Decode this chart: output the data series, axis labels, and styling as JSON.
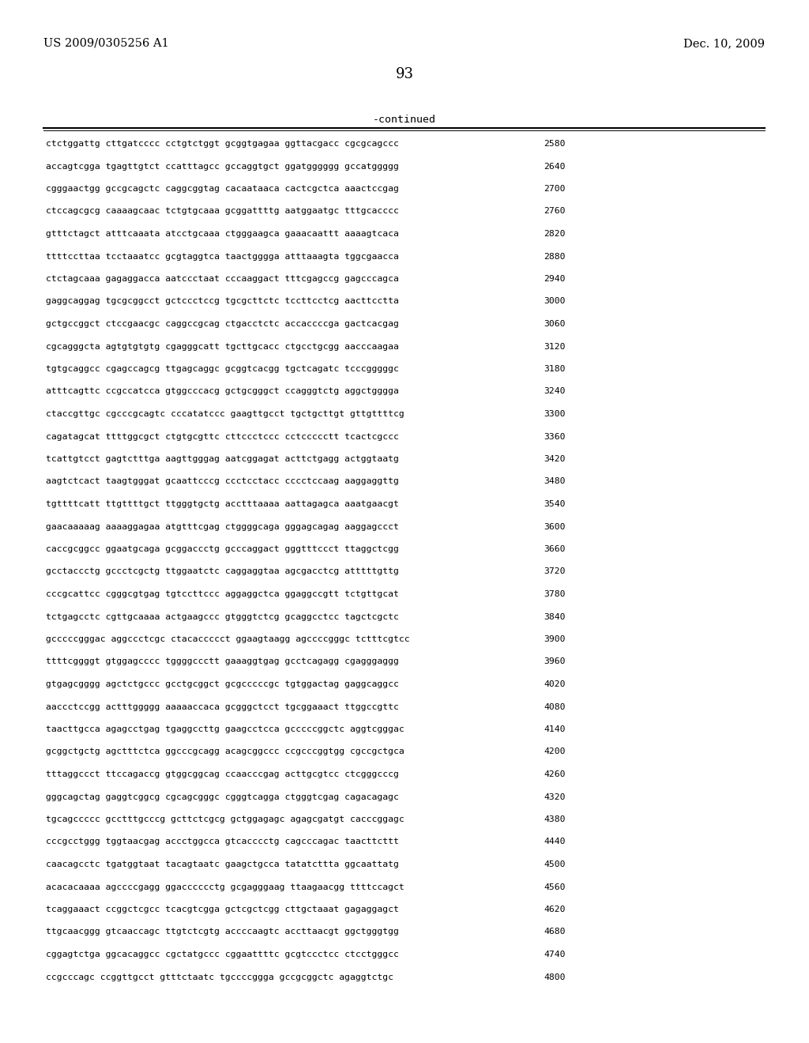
{
  "header_left": "US 2009/0305256 A1",
  "header_right": "Dec. 10, 2009",
  "page_number": "93",
  "continued_label": "-continued",
  "background_color": "#ffffff",
  "text_color": "#000000",
  "sequence_lines": [
    [
      "ctctggattg cttgatcccc cctgtctggt gcggtgagaa ggttacgacc cgcgcagccc",
      "2580"
    ],
    [
      "accagtcgga tgagttgtct ccatttagcc gccaggtgct ggatgggggg gccatggggg",
      "2640"
    ],
    [
      "cgggaactgg gccgcagctc caggcggtag cacaataaca cactcgctca aaactccgag",
      "2700"
    ],
    [
      "ctccagcgcg caaaagcaac tctgtgcaaa gcggattttg aatggaatgc tttgcacccc",
      "2760"
    ],
    [
      "gtttctagct atttcaaata atcctgcaaa ctgggaagca gaaacaattt aaaagtcaca",
      "2820"
    ],
    [
      "ttttccttaa tcctaaatcc gcgtaggtca taactgggga atttaaagta tggcgaacca",
      "2880"
    ],
    [
      "ctctagcaaa gagaggacca aatccctaat cccaaggact tttcgagccg gagcccagca",
      "2940"
    ],
    [
      "gaggcaggag tgcgcggcct gctccctccg tgcgcttctc tccttcctcg aacttcctta",
      "3000"
    ],
    [
      "gctgccggct ctccgaacgc caggccgcag ctgacctctc accaccccga gactcacgag",
      "3060"
    ],
    [
      "cgcagggcta agtgtgtgtg cgagggcatt tgcttgcacc ctgcctgcgg aacccaagaa",
      "3120"
    ],
    [
      "tgtgcaggcc cgagccagcg ttgagcaggc gcggtcacgg tgctcagatc tcccgggggc",
      "3180"
    ],
    [
      "atttcagttc ccgccatcca gtggcccacg gctgcgggct ccagggtctg aggctgggga",
      "3240"
    ],
    [
      "ctaccgttgc cgcccgcagtc cccatatccc gaagttgcct tgctgcttgt gttgttttcg",
      "3300"
    ],
    [
      "cagatagcat ttttggcgct ctgtgcgttc cttccctccc cctccccctt tcactcgccc",
      "3360"
    ],
    [
      "tcattgtcct gagtctttga aagttgggag aatcggagat acttctgagg actggtaatg",
      "3420"
    ],
    [
      "aagtctcact taagtgggat gcaattcccg ccctcctacc cccctccaag aaggaggttg",
      "3480"
    ],
    [
      "tgttttcatt ttgttttgct ttgggtgctg acctttaaaa aattagagca aaatgaacgt",
      "3540"
    ],
    [
      "gaacaaaaag aaaaggagaa atgtttcgag ctggggcaga gggagcagag aaggagccct",
      "3600"
    ],
    [
      "caccgcggcc ggaatgcaga gcggaccctg gcccaggact gggtttccct ttaggctcgg",
      "3660"
    ],
    [
      "gcctaccctg gccctcgctg ttggaatctc caggaggtaa agcgacctcg atttttgttg",
      "3720"
    ],
    [
      "cccgcattcc cgggcgtgag tgtccttccc aggaggctca ggaggccgtt tctgttgcat",
      "3780"
    ],
    [
      "tctgagcctc cgttgcaaaa actgaagccc gtgggtctcg gcaggcctcc tagctcgctc",
      "3840"
    ],
    [
      "gcccccgggac aggccctcgc ctacaccccct ggaagtaagg agccccgggc tctttcgtcc",
      "3900"
    ],
    [
      "ttttcggggt gtggagcccc tggggccctt gaaaggtgag gcctcagagg cgagggaggg",
      "3960"
    ],
    [
      "gtgagcgggg agctctgccc gcctgcggct gcgcccccgc tgtggactag gaggcaggcc",
      "4020"
    ],
    [
      "aaccctccgg actttggggg aaaaaccaca gcgggctcct tgcggaaact ttggccgttc",
      "4080"
    ],
    [
      "taacttgcca agagcctgag tgaggccttg gaagcctcca gcccccggctc aggtcgggac",
      "4140"
    ],
    [
      "gcggctgctg agctttctca ggcccgcagg acagcggccc ccgcccggtgg cgccgctgca",
      "4200"
    ],
    [
      "tttaggccct ttccagaccg gtggcggcag ccaacccgag acttgcgtcc ctcgggcccg",
      "4260"
    ],
    [
      "gggcagctag gaggtcggcg cgcagcgggc cgggtcagga ctgggtcgag cagacagagc",
      "4320"
    ],
    [
      "tgcagccccc gcctttgcccg gcttctcgcg gctggagagc agagcgatgt cacccggagc",
      "4380"
    ],
    [
      "cccgcctggg tggtaacgag accctggcca gtcacccctg cagcccagac taacttcttt",
      "4440"
    ],
    [
      "caacagcctc tgatggtaat tacagtaatc gaagctgcca tatatcttta ggcaattatg",
      "4500"
    ],
    [
      "acacacaaaa agccccgagg ggacccccctg gcgagggaag ttaagaacgg ttttccagct",
      "4560"
    ],
    [
      "tcaggaaact ccggctcgcc tcacgtcgga gctcgctcgg cttgctaaat gagaggagct",
      "4620"
    ],
    [
      "ttgcaacggg gtcaaccagc ttgtctcgtg accccaagtc accttaacgt ggctgggtgg",
      "4680"
    ],
    [
      "cggagtctga ggcacaggcc cgctatgccc cggaattttc gcgtccctcc ctcctgggcc",
      "4740"
    ],
    [
      "ccgcccagc ccggttgcct gtttctaatc tgccccggga gccgcggctc agaggtctgc",
      "4800"
    ]
  ]
}
